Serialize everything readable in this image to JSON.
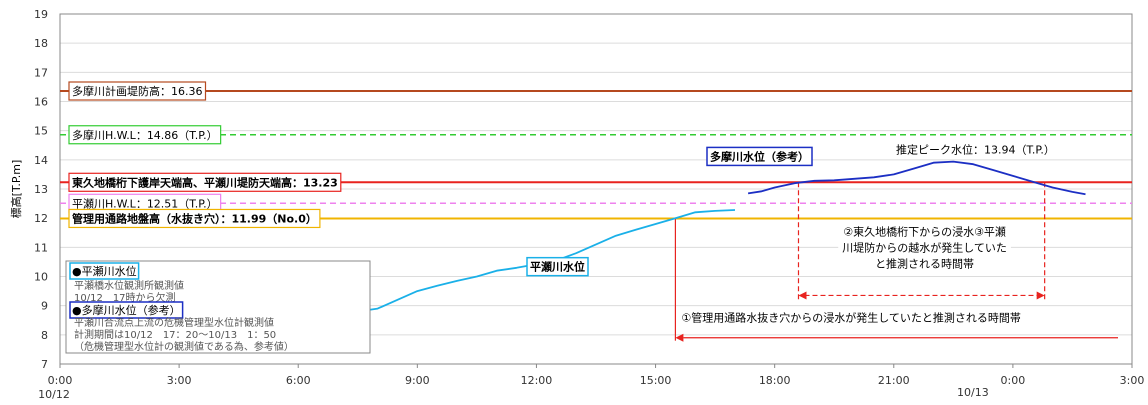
{
  "chart_data": {
    "type": "line",
    "ylabel": "標高[T.P.m]",
    "ylim": [
      7,
      19
    ],
    "yticks": [
      "7",
      "8",
      "9",
      "10",
      "11",
      "12",
      "13",
      "14",
      "15",
      "16",
      "17",
      "18",
      "19"
    ],
    "xlim": [
      0,
      27
    ],
    "xticks": [
      "0:00",
      "3:00",
      "6:00",
      "9:00",
      "12:00",
      "15:00",
      "18:00",
      "21:00",
      "0:00",
      "3:00"
    ],
    "date_labels": {
      "start": "10/12",
      "next_day": "10/13"
    },
    "grid": "horizontal",
    "series": [
      {
        "name": "平瀬川水位",
        "color": "#1ab0e8",
        "x": [
          7.0,
          7.5,
          8.0,
          8.5,
          9.0,
          9.5,
          10.0,
          10.5,
          11.0,
          11.5,
          12.0,
          12.5,
          13.0,
          13.5,
          14.0,
          14.5,
          15.0,
          15.5,
          16.0,
          16.5,
          17.0
        ],
        "y": [
          8.75,
          8.8,
          8.9,
          9.2,
          9.5,
          9.68,
          9.85,
          10.0,
          10.2,
          10.3,
          10.42,
          10.55,
          10.8,
          11.1,
          11.4,
          11.6,
          11.8,
          12.0,
          12.2,
          12.25,
          12.28
        ]
      },
      {
        "name": "多摩川水位（参考）",
        "color": "#1c2fc4",
        "x": [
          17.33,
          17.67,
          18.0,
          18.5,
          19.0,
          19.5,
          20.0,
          20.5,
          21.0,
          21.5,
          22.0,
          22.5,
          23.0,
          23.5,
          24.0,
          24.5,
          25.0,
          25.5,
          25.83
        ],
        "y": [
          12.85,
          12.92,
          13.05,
          13.2,
          13.28,
          13.3,
          13.35,
          13.4,
          13.5,
          13.7,
          13.9,
          13.94,
          13.85,
          13.65,
          13.45,
          13.25,
          13.05,
          12.9,
          12.82
        ]
      }
    ],
    "reference_lines": [
      {
        "label": "多摩川計画堤防高：16.36",
        "value": 16.36,
        "color": "#b5491f",
        "style": "solid"
      },
      {
        "label": "多摩川H.W.L：14.86（T.P.）",
        "value": 14.86,
        "color": "#33cc33",
        "style": "dashed"
      },
      {
        "label": "東久地橋桁下護岸天端高、平瀬川堤防天端高：13.23",
        "value": 13.23,
        "color": "#e8231f",
        "style": "solid"
      },
      {
        "label": "平瀬川H.W.L：12.51（T.P.）",
        "value": 12.51,
        "color": "#ee82ee",
        "style": "dashed"
      },
      {
        "label": "管理用通路地盤高（水抜き穴）：11.99（No.0）",
        "value": 11.99,
        "color": "#f0b400",
        "style": "solid"
      }
    ],
    "annotations": {
      "hirase_series_label": "平瀬川水位",
      "tama_series_label": "多摩川水位（参考）",
      "peak": "推定ピーク水位：13.94（T.P.）",
      "period1": "①管理用通路水抜き穴からの浸水が発生していたと推測される時間帯",
      "period2_lines": [
        "②東久地橋桁下からの浸水③平瀬",
        "川堤防からの越水が発生していた",
        "と推測される時間帯"
      ],
      "period1_range": [
        15.5,
        27.0
      ],
      "period2_range": [
        18.6,
        24.8
      ]
    },
    "legend_box": {
      "item1_title": "●平瀬川水位",
      "item1_lines": [
        "平瀬橋水位観測所観測値",
        "10/12　17時から欠測"
      ],
      "item2_title": "●多摩川水位（参考）",
      "item2_lines": [
        "平瀬川合流点上流の危機管理型水位計観測値",
        "計測期間は10/12　17：20～10/13　1：50",
        "（危機管理型水位計の観測値である為、参考値）"
      ]
    }
  }
}
